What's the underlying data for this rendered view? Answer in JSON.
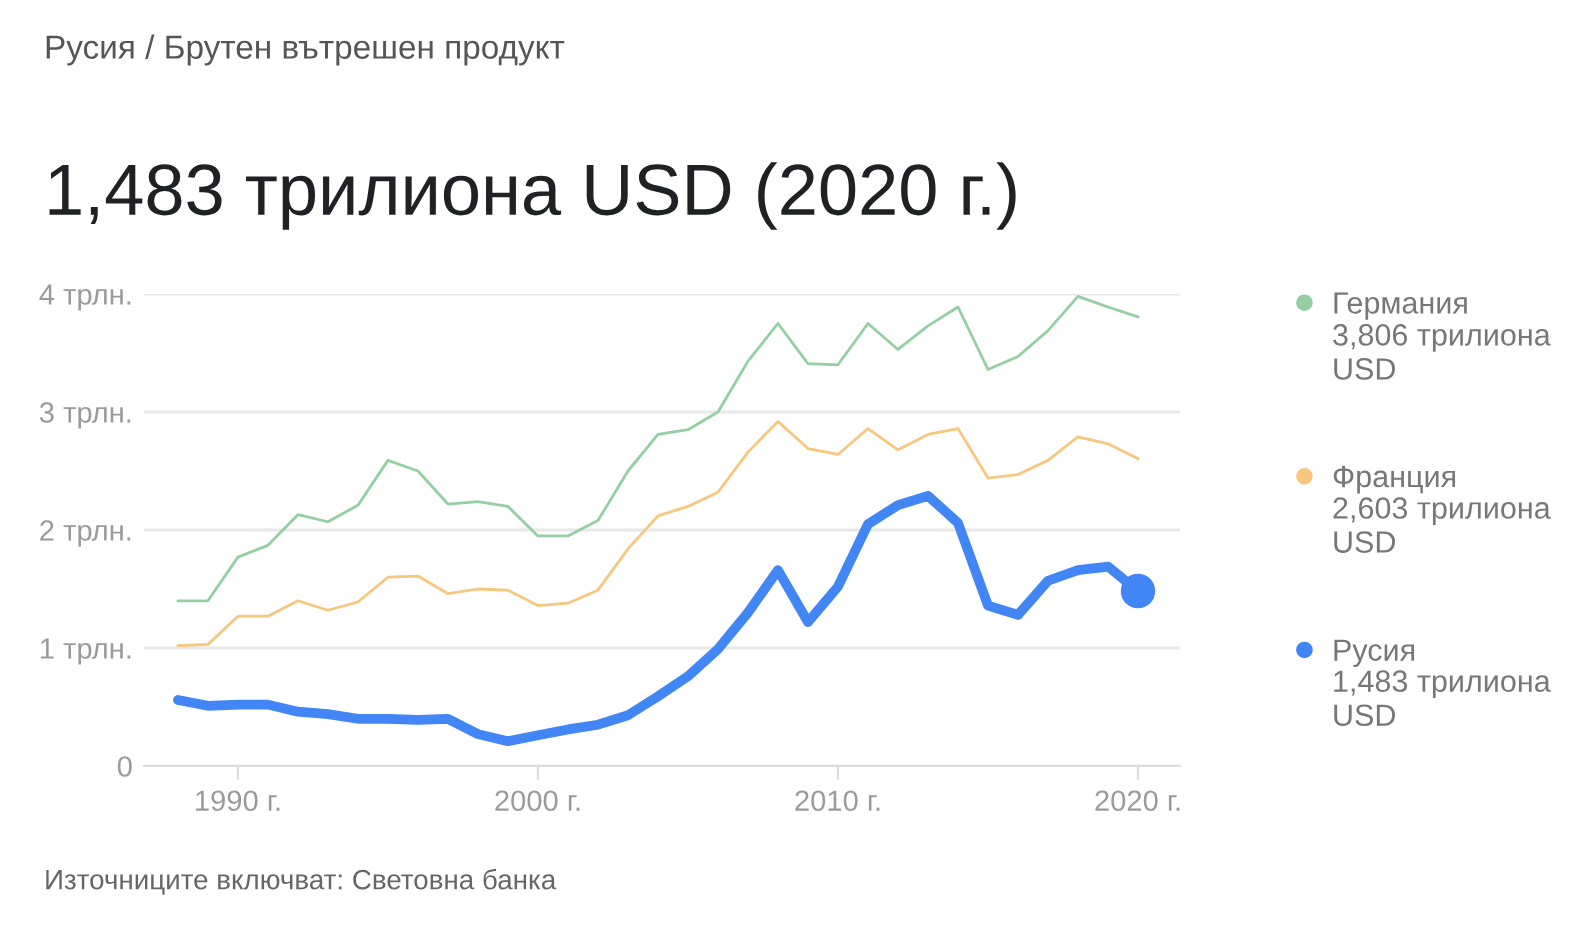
{
  "chart_data": {
    "type": "line",
    "subtitle": "Русия / Брутен вътрешен продукт",
    "title": "1,483 трилиона USD (2020 г.)",
    "x": [
      1988,
      1989,
      1990,
      1991,
      1992,
      1993,
      1994,
      1995,
      1996,
      1997,
      1998,
      1999,
      2000,
      2001,
      2002,
      2003,
      2004,
      2005,
      2006,
      2007,
      2008,
      2009,
      2010,
      2011,
      2012,
      2013,
      2014,
      2015,
      2016,
      2017,
      2018,
      2019,
      2020
    ],
    "series": [
      {
        "name": "Германия",
        "color": "#93cfa2",
        "values": [
          1.4,
          1.4,
          1.77,
          1.87,
          2.13,
          2.07,
          2.21,
          2.59,
          2.5,
          2.22,
          2.24,
          2.2,
          1.95,
          1.95,
          2.08,
          2.5,
          2.81,
          2.85,
          3.0,
          3.43,
          3.75,
          3.41,
          3.4,
          3.75,
          3.53,
          3.73,
          3.89,
          3.36,
          3.47,
          3.69,
          3.98,
          3.89,
          3.806
        ]
      },
      {
        "name": "Франция",
        "color": "#f6c77d",
        "values": [
          1.02,
          1.03,
          1.27,
          1.27,
          1.4,
          1.32,
          1.39,
          1.6,
          1.61,
          1.46,
          1.5,
          1.49,
          1.36,
          1.38,
          1.49,
          1.84,
          2.12,
          2.2,
          2.32,
          2.66,
          2.92,
          2.69,
          2.64,
          2.86,
          2.68,
          2.81,
          2.86,
          2.44,
          2.47,
          2.59,
          2.79,
          2.73,
          2.603
        ]
      },
      {
        "name": "Русия",
        "color": "#4285f4",
        "values": [
          0.56,
          0.51,
          0.52,
          0.52,
          0.46,
          0.44,
          0.4,
          0.4,
          0.39,
          0.4,
          0.27,
          0.21,
          0.26,
          0.31,
          0.35,
          0.43,
          0.59,
          0.76,
          0.99,
          1.3,
          1.66,
          1.22,
          1.52,
          2.05,
          2.21,
          2.29,
          2.06,
          1.36,
          1.28,
          1.57,
          1.66,
          1.69,
          1.483
        ]
      },
      {
        "type": "scatter",
        "color": "#4285f4",
        "x": [
          2020
        ],
        "values": [
          1.483
        ],
        "marker": "circle"
      }
    ],
    "annotations": [
      "3,806 трилиона USD",
      "2,603 трилиона USD",
      "1,483 трилиона USD",
      "Източниците включват: Световна банка"
    ],
    "xlim": [
      1986.87,
      2021.4
    ],
    "xticks": [
      {
        "value": 1990,
        "label": "1990 г."
      },
      {
        "value": 2000,
        "label": "2000 г."
      },
      {
        "value": 2010,
        "label": "2010 г."
      },
      {
        "value": 2020,
        "label": "2020 г."
      }
    ],
    "ylim": [
      0,
      4
    ],
    "yticks": [
      0,
      {
        "value": 1,
        "label": "1 трлн."
      },
      {
        "value": 2,
        "label": "2 трлн."
      },
      {
        "value": 3,
        "label": "3 трлн."
      },
      {
        "value": 4,
        "label": "4 трлн."
      }
    ],
    "grid": "y",
    "legend": "right"
  }
}
